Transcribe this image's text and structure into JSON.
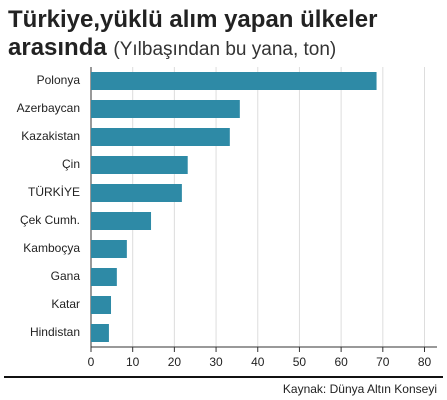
{
  "chart_data": {
    "type": "hbar",
    "title": "Türkiye,yüklü alım yapan ülkeler arasında",
    "subtitle": "(Yılbaşından bu yana, ton)",
    "source": "Kaynak: Dünya Altın Konseyi",
    "categories": [
      "Polonya",
      "Azerbaycan",
      "Kazakistan",
      "Çin",
      "TÜRKİYE",
      "Çek Cumh.",
      "Kamboçya",
      "Gana",
      "Katar",
      "Hindistan"
    ],
    "values": [
      68.5,
      35.7,
      33.3,
      23.2,
      21.8,
      14.4,
      8.6,
      6.2,
      4.8,
      4.3
    ],
    "color": "#2e8aa6",
    "xlim": [
      0,
      83
    ],
    "xticks": [
      0,
      10,
      20,
      30,
      40,
      50,
      60,
      70,
      80
    ],
    "grid": true
  }
}
